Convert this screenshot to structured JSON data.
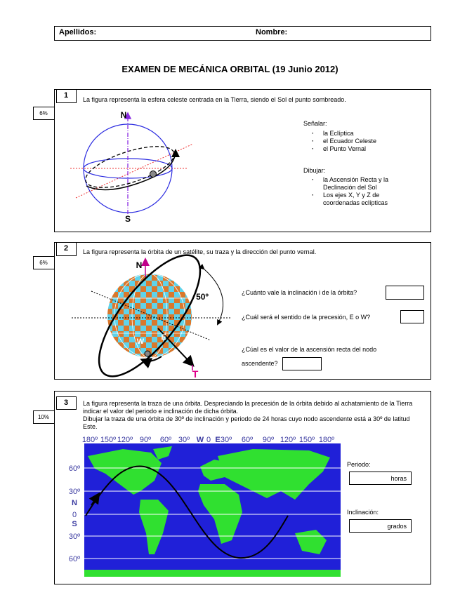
{
  "header": {
    "surname_label": "Apellidos:",
    "name_label": "Nombre:"
  },
  "title": "EXAMEN DE MECÁNICA ORBITAL (19 Junio 2012)",
  "questions": [
    {
      "number": "1",
      "weight": "6%",
      "statement": "La figura representa la esfera celeste centrada en la Tierra, siendo el Sol el punto sombreado.",
      "figure_labels": [
        "N",
        "S"
      ],
      "mark_heading": "Señalar:",
      "mark_items": [
        "la Eclíptica",
        "el Ecuador Celeste",
        "el Punto Vernal"
      ],
      "draw_heading": "Dibujar:",
      "draw_items": [
        "la Ascensión Recta y la Declinación del Sol",
        "Los ejes X, Y y Z de coordenadas eclípticas"
      ]
    },
    {
      "number": "2",
      "weight": "6%",
      "statement": "La figura representa la órbita de un satélite, su traza y la dirección del punto vernal.",
      "figure_labels": [
        "N",
        "50º",
        "W",
        "E",
        "T"
      ],
      "prompts": [
        "¿Cuánto vale la inclinación i de la órbita?",
        "¿Cuál será el sentido de la precesión, E o W?",
        "¿Cúal es el valor de la ascensión recta del nodo ascendente?"
      ]
    },
    {
      "number": "3",
      "weight": "10%",
      "statement": [
        "La figura representa la traza de una órbita. Despreciando la precesión de la órbita debido al achatamiento de la Tierra indicar el valor del periodo e inclinación de dicha órbita.",
        "Dibujar la traza de una órbita de 30º de inclinación y periodo de 24 horas cuyo nodo ascendente está a 30º de latitud Este."
      ],
      "longitude_labels": [
        "180º",
        "150º",
        "120º",
        "90º",
        "60º",
        "30º",
        "W",
        "0",
        "E",
        "30º",
        "60º",
        "90º",
        "120º",
        "150º",
        "180º"
      ],
      "latitude_labels": [
        "60º",
        "30º",
        "N",
        "0",
        "S",
        "30º",
        "60º"
      ],
      "period_label": "Periodo:",
      "period_unit": "horas",
      "inclination_label": "Inclinación:",
      "inclination_unit": "grados"
    }
  ]
}
